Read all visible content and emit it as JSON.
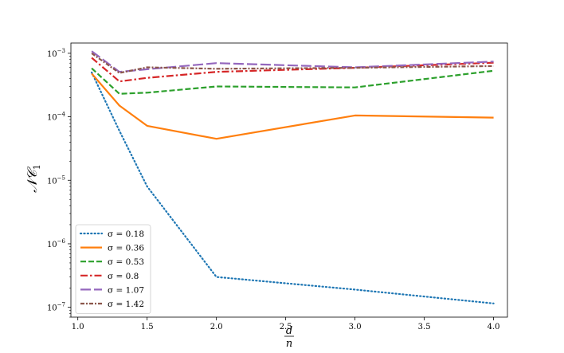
{
  "chart_data": {
    "type": "line",
    "x_scale": "linear",
    "y_scale": "log",
    "xlim": [
      0.95,
      4.1
    ],
    "ylim": [
      7e-08,
      0.00145
    ],
    "x_ticks": [
      1.0,
      1.5,
      2.0,
      2.5,
      3.0,
      3.5,
      4.0
    ],
    "x_tick_labels": [
      "1.0",
      "1.5",
      "2.0",
      "2.5",
      "3.0",
      "3.5",
      "4.0"
    ],
    "y_ticks": [
      1e-07,
      1e-06,
      1e-05,
      0.0001,
      0.001
    ],
    "y_tick_labels": [
      {
        "base": "10",
        "exp": "−7"
      },
      {
        "base": "10",
        "exp": "−6"
      },
      {
        "base": "10",
        "exp": "−5"
      },
      {
        "base": "10",
        "exp": "−4"
      },
      {
        "base": "10",
        "exp": "−3"
      }
    ],
    "xlabel": {
      "numerator": "d",
      "denominator": "n"
    },
    "ylabel": {
      "main": "𝒩𝒞",
      "sub": "1"
    },
    "grid": false,
    "legend_position": "lower-left",
    "series": [
      {
        "name": "σ = 0.18",
        "color": "#1f77b4",
        "style": "dotted",
        "x": [
          1.1,
          1.3,
          1.5,
          2.0,
          3.0,
          4.0
        ],
        "y": [
          0.0005,
          6e-05,
          8e-06,
          3e-07,
          1.9e-07,
          1.15e-07
        ]
      },
      {
        "name": "σ = 0.36",
        "color": "#ff7f0e",
        "style": "solid",
        "x": [
          1.1,
          1.3,
          1.5,
          2.0,
          3.0,
          4.0
        ],
        "y": [
          0.00048,
          0.00015,
          7.2e-05,
          4.5e-05,
          0.000105,
          9.7e-05
        ]
      },
      {
        "name": "σ = 0.53",
        "color": "#2ca02c",
        "style": "dashed",
        "x": [
          1.1,
          1.3,
          1.5,
          2.0,
          3.0,
          4.0
        ],
        "y": [
          0.00058,
          0.00023,
          0.00024,
          0.0003,
          0.00029,
          0.00053
        ]
      },
      {
        "name": "σ = 0.8",
        "color": "#d62728",
        "style": "dashdot",
        "x": [
          1.1,
          1.3,
          1.5,
          2.0,
          3.0,
          4.0
        ],
        "y": [
          0.00085,
          0.00036,
          0.00041,
          0.00051,
          0.00059,
          0.00071
        ]
      },
      {
        "name": "σ = 1.07",
        "color": "#9467bd",
        "style": "longdash",
        "x": [
          1.1,
          1.3,
          1.5,
          2.0,
          3.0,
          4.0
        ],
        "y": [
          0.00108,
          0.00051,
          0.00056,
          0.0007,
          0.0006,
          0.00074
        ]
      },
      {
        "name": "σ = 1.42",
        "color": "#8c564b",
        "style": "densedashdot",
        "x": [
          1.1,
          1.3,
          1.5,
          2.0,
          3.0,
          4.0
        ],
        "y": [
          0.001,
          0.00049,
          0.0006,
          0.00057,
          0.00059,
          0.00063
        ]
      }
    ]
  }
}
